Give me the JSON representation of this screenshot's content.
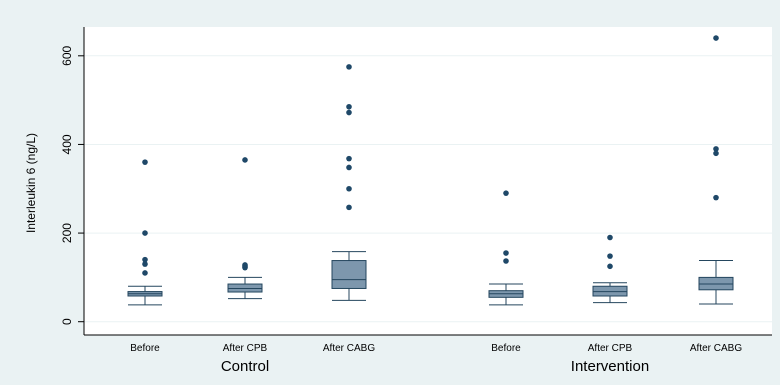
{
  "chart_data": {
    "type": "box",
    "ylabel": "Interleukin 6 (ng/L)",
    "ylim": [
      -30,
      665
    ],
    "yticks": [
      0,
      200,
      400,
      600
    ],
    "grid": true,
    "groups": [
      {
        "label": "Control",
        "boxes": [
          {
            "category": "Before",
            "min": 38,
            "q1": 58,
            "median": 63,
            "q3": 68,
            "max": 80,
            "outliers": [
              110,
              130,
              140,
              200,
              360
            ]
          },
          {
            "category": "After CPB",
            "min": 52,
            "q1": 67,
            "median": 75,
            "q3": 85,
            "max": 100,
            "outliers": [
              122,
              125,
              128,
              365
            ]
          },
          {
            "category": "After CABG",
            "min": 48,
            "q1": 75,
            "median": 95,
            "q3": 138,
            "max": 158,
            "outliers": [
              258,
              300,
              348,
              368,
              472,
              485,
              575
            ]
          }
        ]
      },
      {
        "label": "Intervention",
        "boxes": [
          {
            "category": "Before",
            "min": 38,
            "q1": 55,
            "median": 63,
            "q3": 70,
            "max": 85,
            "outliers": [
              137,
              155,
              290
            ]
          },
          {
            "category": "After CPB",
            "min": 43,
            "q1": 58,
            "median": 68,
            "q3": 80,
            "max": 88,
            "outliers": [
              125,
              148,
              190
            ]
          },
          {
            "category": "After CABG",
            "min": 40,
            "q1": 72,
            "median": 85,
            "q3": 100,
            "max": 138,
            "outliers": [
              280,
              380,
              390,
              640
            ]
          }
        ]
      }
    ],
    "colors": {
      "box_fill": "#7d97ad",
      "box_stroke": "#24465e",
      "marker": "#1f4868",
      "background": "#eaf2f3",
      "grid": "#eaf2f3",
      "plot_bg": "#ffffff"
    }
  }
}
